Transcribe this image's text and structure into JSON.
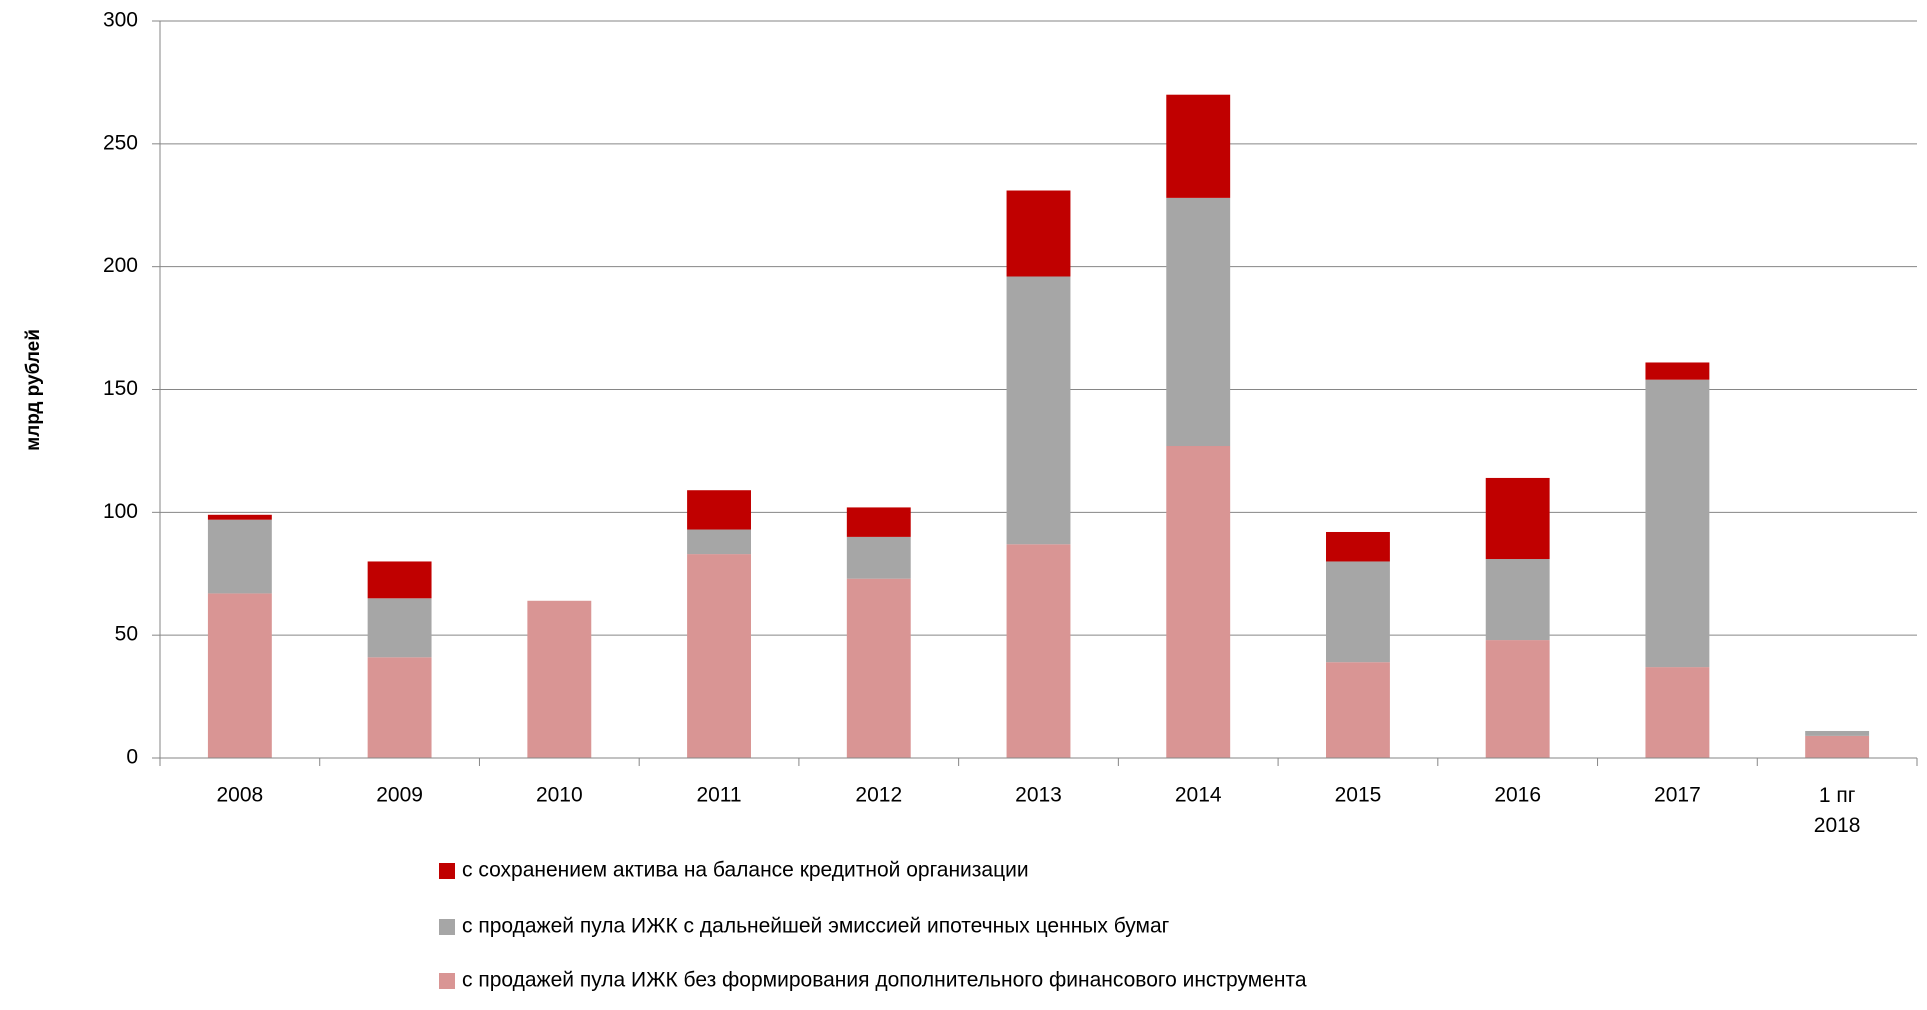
{
  "chart_data": {
    "type": "stacked_bar",
    "y_label": "млрд рублей",
    "categories": [
      "2008",
      "2009",
      "2010",
      "2011",
      "2012",
      "2013",
      "2014",
      "2015",
      "2016",
      "2017",
      "1 пг\n2018"
    ],
    "series": [
      {
        "name": "с продажей пула ИЖК без формирования дополнительного финансового инструмента",
        "color": "#d99594",
        "values": [
          67,
          41,
          64,
          83,
          73,
          87,
          127,
          39,
          48,
          37,
          9
        ]
      },
      {
        "name": "с продажей пула ИЖК с дальнейшей эмиссией ипотечных ценных бумаг",
        "color": "#a6a6a6",
        "values": [
          30,
          24,
          0,
          10,
          17,
          109,
          101,
          41,
          33,
          117,
          2
        ]
      },
      {
        "name": "с сохранением актива на балансе кредитной организации",
        "color": "#c00000",
        "values": [
          2,
          15,
          0,
          16,
          12,
          35,
          42,
          12,
          33,
          7,
          0
        ]
      }
    ],
    "ylim": [
      0,
      300
    ],
    "yticks": [
      0,
      50,
      100,
      150,
      200,
      250,
      300
    ],
    "grid": true
  }
}
